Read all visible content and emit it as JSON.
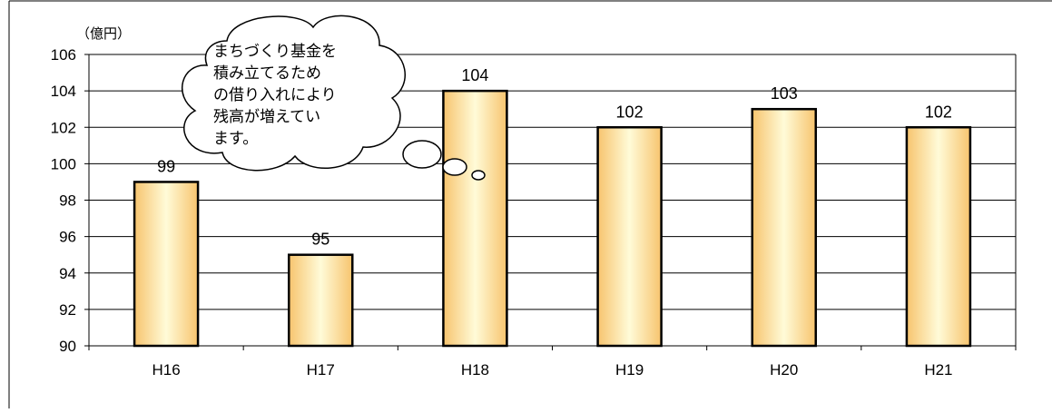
{
  "chart_data": {
    "type": "bar",
    "unit_label": "（億円）",
    "categories": [
      "H16",
      "H17",
      "H18",
      "H19",
      "H20",
      "H21"
    ],
    "values": [
      99,
      95,
      104,
      102,
      103,
      102
    ],
    "data_labels": [
      "99",
      "95",
      "104",
      "102",
      "103",
      "102"
    ],
    "ylim": [
      90,
      106
    ],
    "yticks": [
      90,
      92,
      94,
      96,
      98,
      100,
      102,
      104,
      106
    ],
    "grid": true,
    "legend": "none",
    "annotation": {
      "lines": [
        "まちづくり基金を",
        "積み立てるため",
        "の借り入れにより",
        "残高が増えてい",
        "ます。"
      ]
    }
  },
  "colors": {
    "bar_fill_edge": "#f7c46e",
    "bar_fill_center": "#fffbd8",
    "bar_stroke": "#000000",
    "grid": "#000000",
    "text": "#000000"
  }
}
